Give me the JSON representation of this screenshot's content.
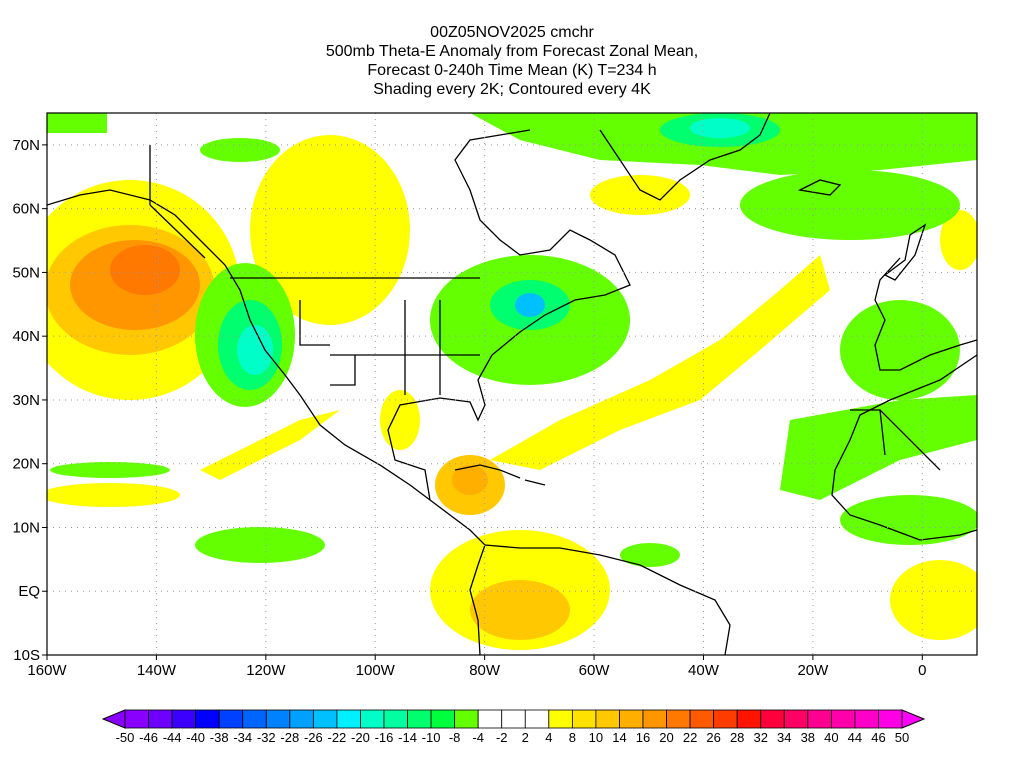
{
  "title": {
    "line1": "00Z05NOV2025 cmchr",
    "line2": "500mb Theta-E Anomaly from Forecast Zonal Mean,",
    "line3": "Forecast 0-240h Time Mean (K) T=234 h",
    "line4": "Shading every 2K; Contoured every 4K"
  },
  "axes": {
    "lon_labels": [
      "160W",
      "140W",
      "120W",
      "100W",
      "80W",
      "60W",
      "40W",
      "20W",
      "0"
    ],
    "lon_values": [
      -160,
      -140,
      -120,
      -100,
      -80,
      -60,
      -40,
      -20,
      0
    ],
    "lat_labels": [
      "70N",
      "60N",
      "50N",
      "40N",
      "30N",
      "20N",
      "10N",
      "EQ",
      "10S"
    ],
    "lat_values": [
      70,
      60,
      50,
      40,
      30,
      20,
      10,
      0,
      -10
    ],
    "lon_range": [
      -160,
      10
    ],
    "lat_range": [
      -10,
      75
    ]
  },
  "colorbar": {
    "labels": [
      "-50",
      "-46",
      "-44",
      "-40",
      "-38",
      "-34",
      "-32",
      "-28",
      "-26",
      "-22",
      "-20",
      "-16",
      "-14",
      "-10",
      "-8",
      "-4",
      "-2",
      "2",
      "4",
      "8",
      "10",
      "14",
      "16",
      "20",
      "22",
      "26",
      "28",
      "32",
      "34",
      "38",
      "40",
      "44",
      "46",
      "50"
    ],
    "colors": [
      "#8a00ff",
      "#6e00ff",
      "#3c00ff",
      "#0000ff",
      "#0040ff",
      "#0064ff",
      "#0082ff",
      "#00a0ff",
      "#00c0ff",
      "#00f0ff",
      "#00ffc8",
      "#00ffa0",
      "#00ff6e",
      "#00ff3c",
      "#64ff00",
      "#ffffff",
      "#ffffff",
      "#ffffff",
      "#ffff00",
      "#ffe100",
      "#ffc800",
      "#ffaf00",
      "#ff9600",
      "#ff7800",
      "#ff5a00",
      "#ff3c00",
      "#ff1400",
      "#ff003c",
      "#ff0064",
      "#ff0090",
      "#ff00aa",
      "#ff00c8",
      "#ff00e6"
    ],
    "low_color": "#8a00ff",
    "high_color": "#ff00ff"
  }
}
